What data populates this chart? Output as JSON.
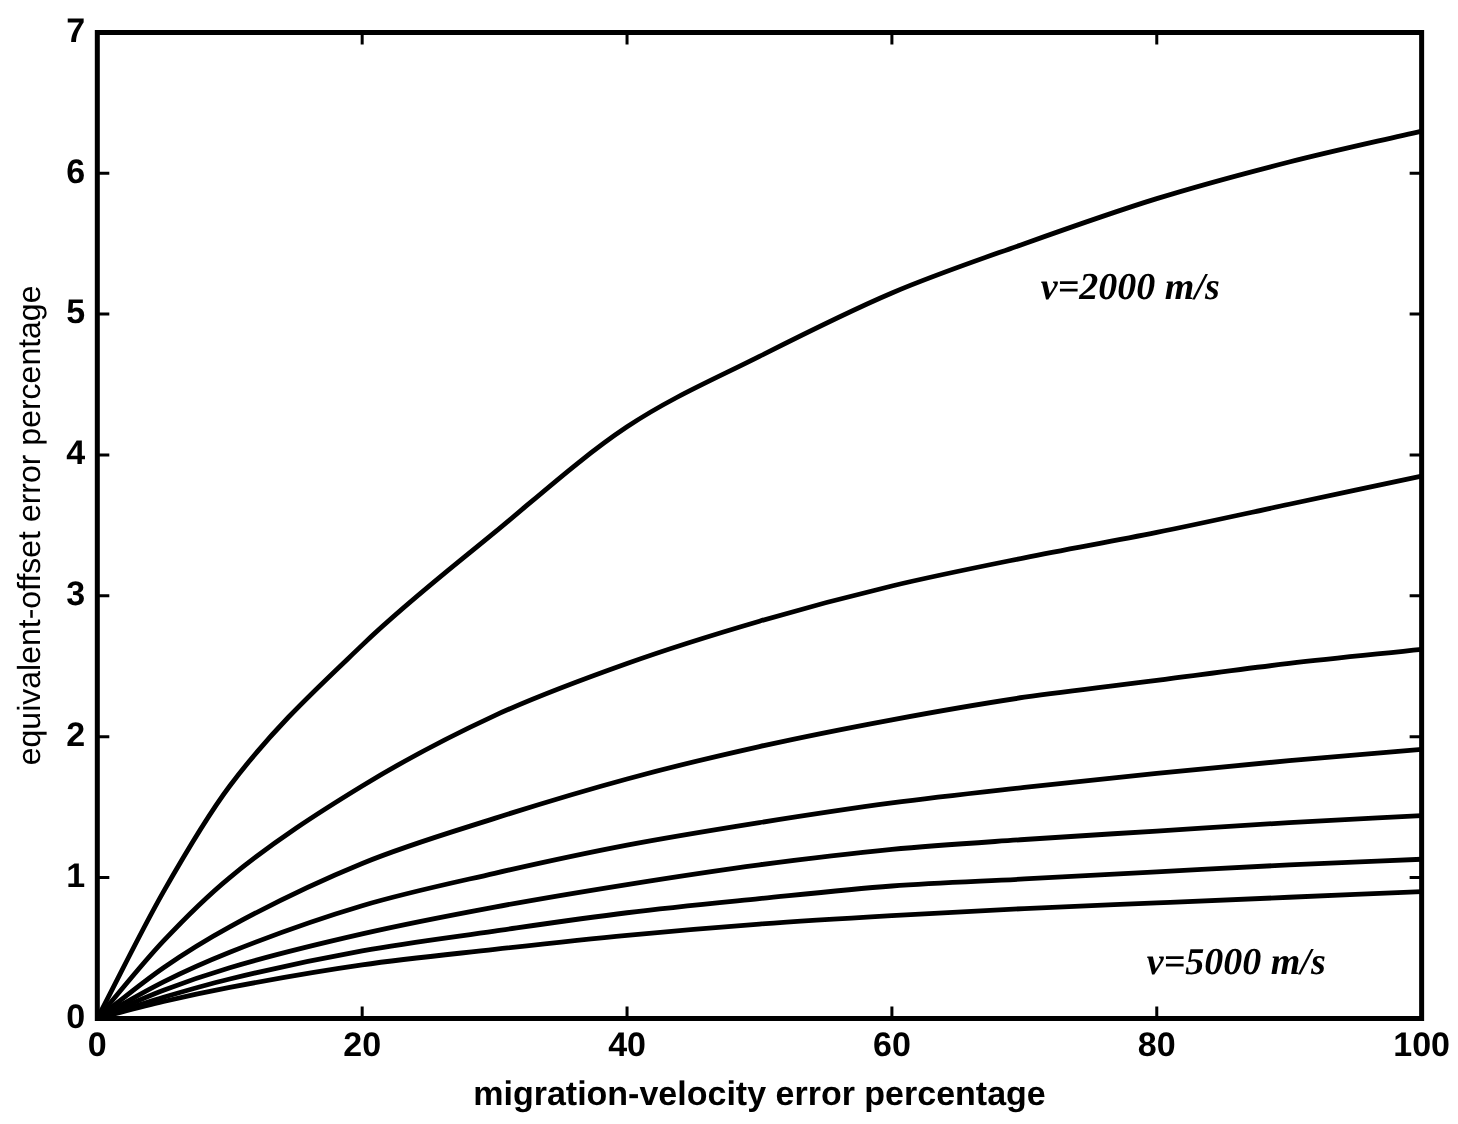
{
  "chart_data": {
    "type": "line",
    "xlabel": "migration-velocity error percentage",
    "ylabel": "equivalent-offset error percentage",
    "x": [
      0,
      5,
      10,
      20,
      30,
      40,
      50,
      60,
      70,
      80,
      90,
      100
    ],
    "series": [
      {
        "color": "#000000",
        "values": [
          0,
          0.9,
          1.65,
          2.65,
          3.45,
          4.2,
          4.7,
          5.15,
          5.5,
          5.82,
          6.08,
          6.3
        ]
      },
      {
        "color": "#000000",
        "values": [
          0,
          0.55,
          1.0,
          1.65,
          2.15,
          2.52,
          2.82,
          3.07,
          3.27,
          3.45,
          3.65,
          3.85
        ]
      },
      {
        "color": "#000000",
        "values": [
          0,
          0.36,
          0.65,
          1.1,
          1.42,
          1.7,
          1.93,
          2.12,
          2.28,
          2.4,
          2.52,
          2.62
        ]
      },
      {
        "color": "#000000",
        "values": [
          0,
          0.26,
          0.47,
          0.8,
          1.03,
          1.23,
          1.39,
          1.53,
          1.64,
          1.74,
          1.83,
          1.91
        ]
      },
      {
        "color": "#000000",
        "values": [
          0,
          0.2,
          0.36,
          0.6,
          0.79,
          0.95,
          1.09,
          1.2,
          1.27,
          1.33,
          1.39,
          1.44
        ]
      },
      {
        "color": "#000000",
        "values": [
          0,
          0.15,
          0.28,
          0.48,
          0.62,
          0.75,
          0.85,
          0.94,
          0.99,
          1.04,
          1.09,
          1.13
        ]
      },
      {
        "color": "#000000",
        "values": [
          0,
          0.12,
          0.22,
          0.38,
          0.49,
          0.59,
          0.67,
          0.73,
          0.78,
          0.82,
          0.86,
          0.9
        ]
      }
    ],
    "annotations": [
      "v=2000 m/s",
      "v=5000 m/s"
    ],
    "xlim": [
      0,
      100
    ],
    "xticks": [
      0,
      20,
      40,
      60,
      80,
      100
    ],
    "ylim": [
      0,
      7
    ],
    "yticks": [
      0,
      1,
      2,
      3,
      4,
      5,
      6,
      7
    ],
    "grid": false,
    "legend": false,
    "marker": "none",
    "line_style": "solid"
  }
}
